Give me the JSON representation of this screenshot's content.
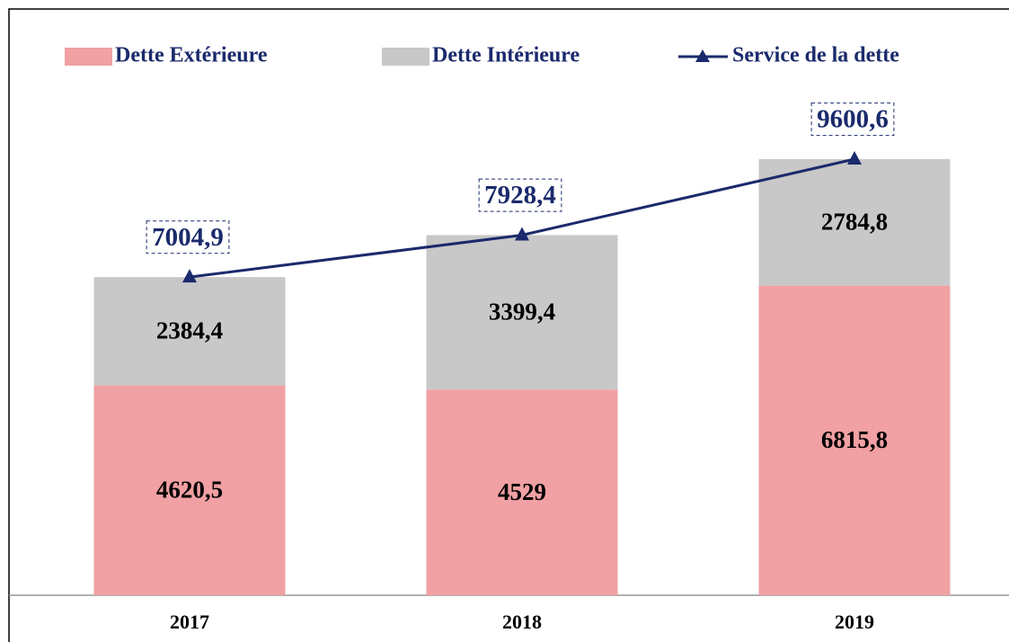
{
  "chart_data": {
    "type": "bar",
    "categories": [
      "2017",
      "2018",
      "2019"
    ],
    "series": [
      {
        "name": "Dette Extérieure",
        "type": "bar",
        "color": "#f1a0a3",
        "values": [
          4620.5,
          4529,
          6815.8
        ],
        "value_labels": [
          "4620,5",
          "4529",
          "6815,8"
        ]
      },
      {
        "name": "Dette Intérieure",
        "type": "bar",
        "color": "#c8c8c8",
        "values": [
          2384.4,
          3399.4,
          2784.8
        ],
        "value_labels": [
          "2384,4",
          "3399,4",
          "2784,8"
        ]
      },
      {
        "name": "Service de la dette",
        "type": "line",
        "color": "#1a2a6c",
        "values": [
          7004.9,
          7928.4,
          9600.6
        ],
        "value_labels": [
          "7004,9",
          "7928,4",
          "9600,6"
        ]
      }
    ],
    "stacked": true,
    "legend": "top"
  }
}
